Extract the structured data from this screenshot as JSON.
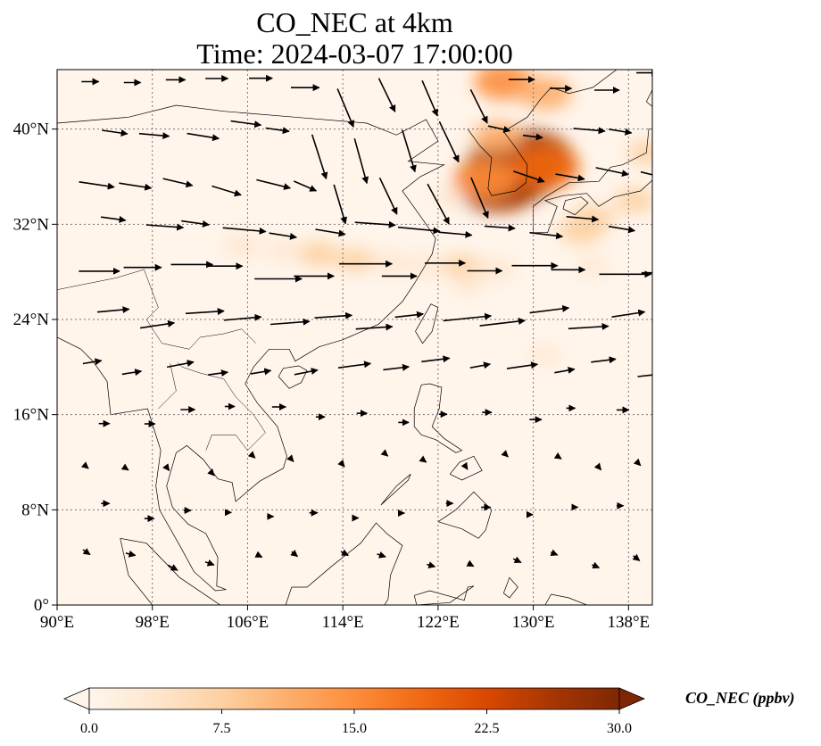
{
  "title": {
    "line1": "CO_NEC at 4km",
    "line2": "Time: 2024-03-07 17:00:00"
  },
  "map": {
    "projection": "PlateCarree",
    "lon_range": [
      90,
      140
    ],
    "lat_range": [
      0,
      45
    ],
    "gridlines": "dotted",
    "lon_ticks": [
      {
        "value": 90,
        "label": "90°E"
      },
      {
        "value": 98,
        "label": "98°E"
      },
      {
        "value": 106,
        "label": "106°E"
      },
      {
        "value": 114,
        "label": "114°E"
      },
      {
        "value": 122,
        "label": "122°E"
      },
      {
        "value": 130,
        "label": "130°E"
      },
      {
        "value": 138,
        "label": "138°E"
      }
    ],
    "lat_ticks": [
      {
        "value": 0,
        "label": "0°"
      },
      {
        "value": 8,
        "label": "8°N"
      },
      {
        "value": 16,
        "label": "16°N"
      },
      {
        "value": 24,
        "label": "24°N"
      },
      {
        "value": 32,
        "label": "32°N"
      },
      {
        "value": 40,
        "label": "40°N"
      }
    ],
    "background_color": "#fff5eb",
    "concentration_hotspots": [
      {
        "lon": 128.3,
        "lat": 36.5,
        "value": 30
      },
      {
        "lon": 129.5,
        "lat": 37.5,
        "value": 27
      },
      {
        "lon": 127.0,
        "lat": 35.3,
        "value": 25
      },
      {
        "lon": 131.0,
        "lat": 36.8,
        "value": 18
      },
      {
        "lon": 126.0,
        "lat": 35.8,
        "value": 16
      },
      {
        "lon": 127.5,
        "lat": 44.0,
        "value": 14
      },
      {
        "lon": 131.0,
        "lat": 43.0,
        "value": 12
      },
      {
        "lon": 127.0,
        "lat": 39.3,
        "value": 11
      },
      {
        "lon": 135.0,
        "lat": 32.5,
        "value": 8
      },
      {
        "lon": 134.0,
        "lat": 31.5,
        "value": 9
      },
      {
        "lon": 138.5,
        "lat": 34.0,
        "value": 7
      },
      {
        "lon": 139.5,
        "lat": 38.0,
        "value": 6
      },
      {
        "lon": 105.5,
        "lat": 30.2,
        "value": 5
      },
      {
        "lon": 109.0,
        "lat": 29.8,
        "value": 4
      },
      {
        "lon": 112.0,
        "lat": 29.5,
        "value": 7
      },
      {
        "lon": 115.0,
        "lat": 29.0,
        "value": 6
      },
      {
        "lon": 118.0,
        "lat": 28.8,
        "value": 5
      },
      {
        "lon": 121.0,
        "lat": 28.5,
        "value": 5
      },
      {
        "lon": 124.0,
        "lat": 28.5,
        "value": 6
      },
      {
        "lon": 127.0,
        "lat": 28.2,
        "value": 5
      },
      {
        "lon": 124.5,
        "lat": 27.0,
        "value": 4
      },
      {
        "lon": 123.0,
        "lat": 34.3,
        "value": 4
      },
      {
        "lon": 135.0,
        "lat": 28.5,
        "value": 3
      },
      {
        "lon": 131.0,
        "lat": 21.0,
        "value": 3
      }
    ],
    "coast_color": "#000000"
  },
  "colorbar": {
    "label": "CO_NEC (ppbv)",
    "min": 0,
    "max": 30,
    "extend": "both",
    "ticks": [
      "0.0",
      "7.5",
      "15.0",
      "22.5",
      "30.0"
    ],
    "colormap": [
      "#fff5eb",
      "#fee6ce",
      "#fdd0a2",
      "#fdae6b",
      "#fd8d3c",
      "#f16913",
      "#d94801",
      "#a63603",
      "#7f2704"
    ]
  },
  "wind_field": {
    "units": "relative",
    "description_rows": [
      {
        "lat": 44,
        "u": 6,
        "v": 0
      },
      {
        "lat": 40,
        "u": 7,
        "v": -1
      },
      {
        "lat": 36,
        "u": 8,
        "v": -2
      },
      {
        "lat": 32,
        "u": 9,
        "v": -1
      },
      {
        "lat": 28,
        "u": 12,
        "v": 0
      },
      {
        "lat": 24,
        "u": 10,
        "v": 1
      },
      {
        "lat": 20,
        "u": 7,
        "v": 1
      },
      {
        "lat": 16,
        "u": 3,
        "v": 0
      },
      {
        "lat": 12,
        "u": 1,
        "v": -1
      },
      {
        "lat": 8,
        "u": 2,
        "v": 0
      },
      {
        "lat": 4,
        "u": 2,
        "v": -1
      }
    ]
  }
}
